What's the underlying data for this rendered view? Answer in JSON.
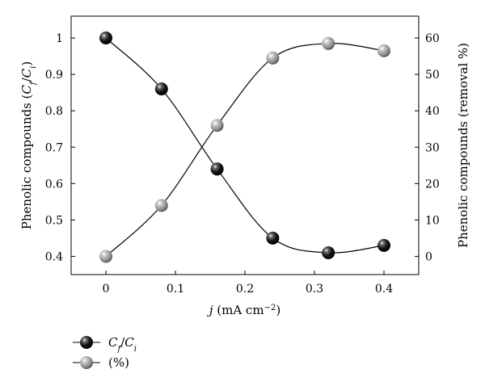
{
  "chart_data": {
    "type": "line",
    "x": [
      0,
      0.08,
      0.16,
      0.24,
      0.32,
      0.4
    ],
    "xlabel": "j (mA cm−2)",
    "xlim": [
      -0.05,
      0.45
    ],
    "xticks": [
      "0",
      "0.1",
      "0.2",
      "0.3",
      "0.4"
    ],
    "ylabel": "Phenolic compounds (Cf/Ci)",
    "ylim": [
      0.35,
      1.06
    ],
    "yticks": [
      "0.4",
      "0.5",
      "0.6",
      "0.7",
      "0.8",
      "0.9",
      "1"
    ],
    "y2label": "Phenolic compounds (removal %)",
    "y2lim": [
      -5,
      66
    ],
    "y2ticks": [
      "0",
      "10",
      "20",
      "30",
      "40",
      "50",
      "60"
    ],
    "series": [
      {
        "name": "Cf/Ci",
        "axis": "left",
        "values": [
          1.0,
          0.86,
          0.64,
          0.45,
          0.41,
          0.43
        ],
        "marker_color": "#111111"
      },
      {
        "name": "(%)",
        "axis": "right",
        "values": [
          0,
          14,
          36,
          54.5,
          58.5,
          56.5
        ],
        "marker_color": "#9a9a9a"
      }
    ],
    "grid": false,
    "legend_position": "bottom-left"
  }
}
